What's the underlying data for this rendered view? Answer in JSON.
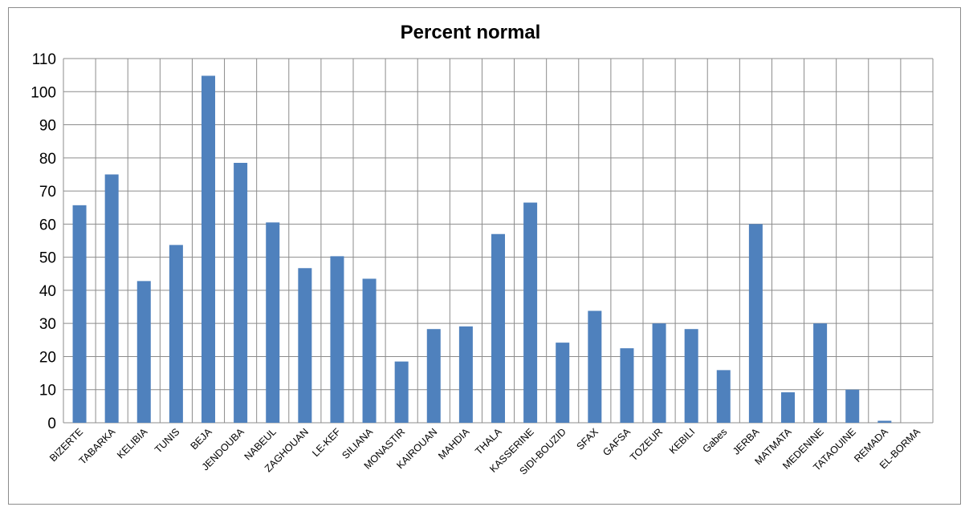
{
  "chart_data": {
    "type": "bar",
    "title": "Percent normal",
    "xlabel": "",
    "ylabel": "",
    "ylim": [
      0,
      110
    ],
    "yticks": [
      0,
      10,
      20,
      30,
      40,
      50,
      60,
      70,
      80,
      90,
      100,
      110
    ],
    "grid": true,
    "legend": "none",
    "bar_color": "#4f81bd",
    "categories": [
      "BIZERTE",
      "TABARKA",
      "KELIBIA",
      "TUNIS",
      "BEJA",
      "JENDOUBA",
      "NABEUL",
      "ZAGHOUAN",
      "LE-KEF",
      "SILIANA",
      "MONASTIR",
      "KAIROUAN",
      "MAHDIA",
      "THALA",
      "KASSERINE",
      "SIDI-BOUZID",
      "SFAX",
      "GAFSA",
      "TOZEUR",
      "KEBILI",
      "Gabes",
      "JERBA",
      "MATMATA",
      "MEDENINE",
      "TATAOUINE",
      "REMADA",
      "EL-BORMA"
    ],
    "values": [
      65.7,
      75,
      42.8,
      53.7,
      104.8,
      78.5,
      60.5,
      46.7,
      50.3,
      43.5,
      18.5,
      28.3,
      29.1,
      57,
      66.5,
      24.2,
      33.8,
      22.5,
      30,
      28.3,
      15.9,
      60,
      9.2,
      30,
      10,
      0.6,
      0
    ]
  }
}
